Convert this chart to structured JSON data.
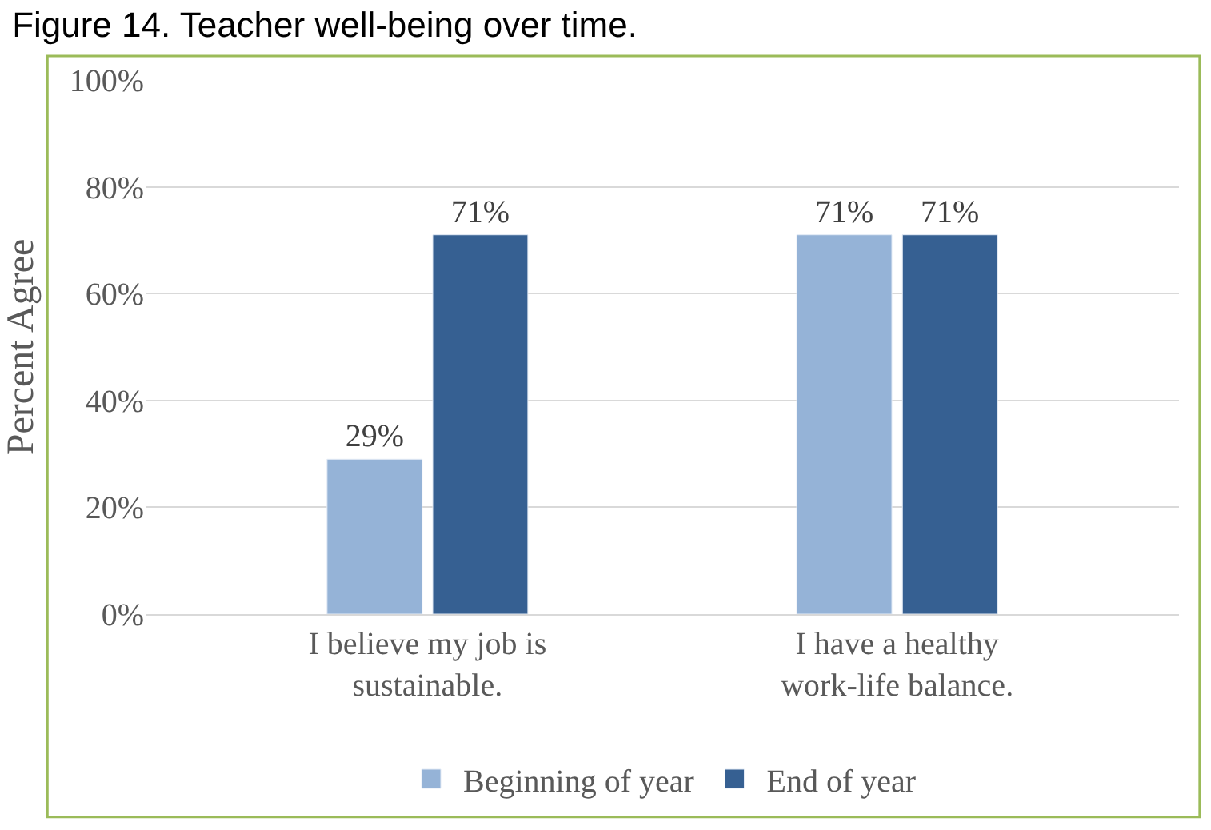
{
  "chart_data": {
    "type": "bar",
    "title": "Figure 14. Teacher well-being over time.",
    "ylabel": "Percent Agree",
    "categories": [
      "I believe my job is sustainable.",
      "I have a healthy work-life balance."
    ],
    "series": [
      {
        "name": "Beginning of year",
        "color": "#95b3d7",
        "values": [
          29,
          71
        ],
        "value_labels": [
          "29%",
          "71%"
        ]
      },
      {
        "name": "End of year",
        "color": "#366092",
        "values": [
          71,
          71
        ],
        "value_labels": [
          "71%",
          "71%"
        ]
      }
    ],
    "ylim": [
      0,
      100
    ],
    "yticks": [
      {
        "value": 0,
        "label": "0%"
      },
      {
        "value": 20,
        "label": "20%"
      },
      {
        "value": 40,
        "label": "40%"
      },
      {
        "value": 60,
        "label": "60%"
      },
      {
        "value": 80,
        "label": "80%"
      },
      {
        "value": 100,
        "label": "100%"
      }
    ],
    "grid": "y",
    "legend": "bottom"
  }
}
